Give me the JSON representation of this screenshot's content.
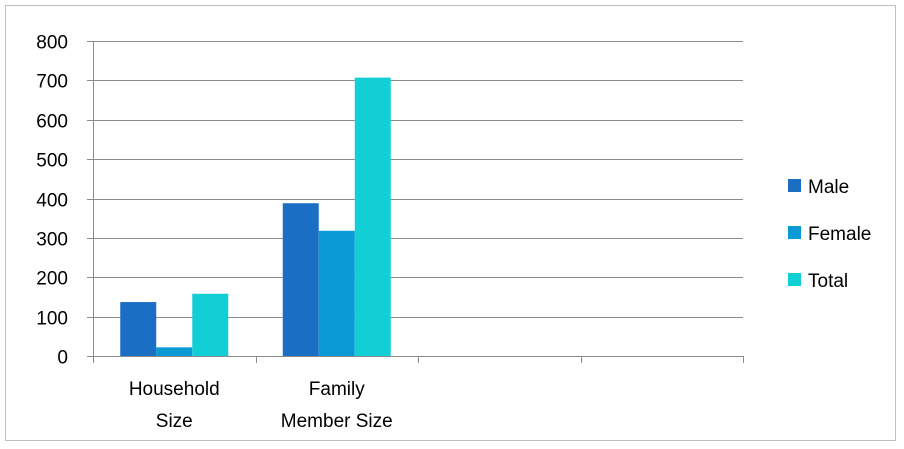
{
  "chart_data": {
    "type": "bar",
    "categories": [
      [
        "Household",
        "Size"
      ],
      [
        "Family",
        "Member Size"
      ],
      [
        ""
      ],
      [
        ""
      ]
    ],
    "series": [
      {
        "name": "Male",
        "color": "#1a6fc4",
        "values": [
          137,
          388,
          null,
          null
        ]
      },
      {
        "name": "Female",
        "color": "#0a9ad6",
        "values": [
          22,
          318,
          null,
          null
        ]
      },
      {
        "name": "Total",
        "color": "#12cfd6",
        "values": [
          158,
          707,
          null,
          null
        ]
      }
    ],
    "ylim": [
      0,
      800
    ],
    "yticks": [
      0,
      100,
      200,
      300,
      400,
      500,
      600,
      700,
      800
    ],
    "grid": true,
    "legend_position": "right",
    "title": "",
    "xlabel": "",
    "ylabel": ""
  }
}
